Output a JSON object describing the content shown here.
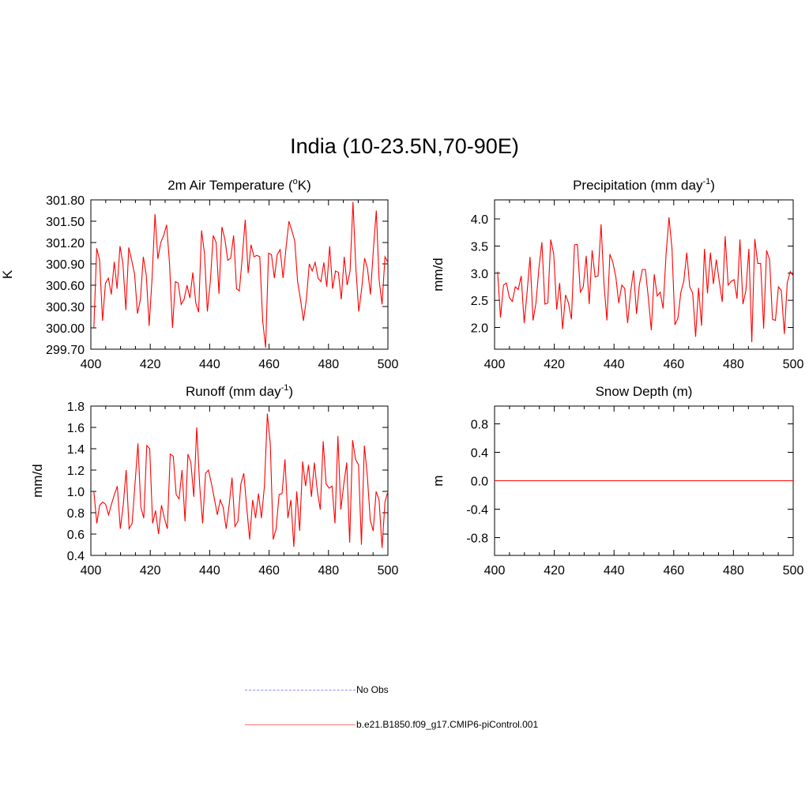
{
  "title": "India (10-23.5N,70-90E)",
  "colors": {
    "model_line": "#ff0000",
    "obs_line": "#8b8bff",
    "model_legend": "#ff6f6f"
  },
  "legend": [
    {
      "label": "No Obs",
      "style": "dashed",
      "color": "#8b8bff"
    },
    {
      "label": "b.e21.B1850.f09_g17.CMIP6-piControl.001",
      "style": "solid",
      "color": "#ff6f6f"
    }
  ],
  "chart_data": [
    {
      "type": "line",
      "title": "2m Air Temperature (",
      "title_sup": "o",
      "title_end": "K)",
      "ylabel": "K",
      "xlim": [
        400,
        500
      ],
      "ylim": [
        299.7,
        301.8
      ],
      "xticks": [
        400,
        420,
        440,
        460,
        480,
        500
      ],
      "yticks": [
        299.7,
        300.0,
        300.3,
        300.6,
        300.9,
        301.2,
        301.5,
        301.8
      ],
      "ytick_labels": [
        "299.70",
        "300.00",
        "300.30",
        "300.60",
        "300.90",
        "301.20",
        "301.50",
        "301.80"
      ],
      "series": [
        {
          "values": [
            300.0,
            301.12,
            300.95,
            300.1,
            300.63,
            300.7,
            300.47,
            300.93,
            300.55,
            301.15,
            300.9,
            300.25,
            301.13,
            300.95,
            300.75,
            300.2,
            300.4,
            301.0,
            300.75,
            300.03,
            300.7,
            301.6,
            300.97,
            301.2,
            301.3,
            301.45,
            300.9,
            300.0,
            300.65,
            300.63,
            300.33,
            300.4,
            300.6,
            300.42,
            300.78,
            300.35,
            300.22,
            301.37,
            301.05,
            300.23,
            300.65,
            301.3,
            301.2,
            300.48,
            301.42,
            301.25,
            300.95,
            300.98,
            301.3,
            300.55,
            300.52,
            301.0,
            301.52,
            300.77,
            301.17,
            301.0,
            301.02,
            301.0,
            300.1,
            299.72,
            301.05,
            301.03,
            300.7,
            301.03,
            301.1,
            300.7,
            301.12,
            301.5,
            301.37,
            301.22,
            300.65,
            300.4,
            300.1,
            300.4,
            300.9,
            300.8,
            300.92,
            300.7,
            300.65,
            300.92,
            300.58,
            301.15,
            300.55,
            300.8,
            300.78,
            300.4,
            301.0,
            300.6,
            300.8,
            301.77,
            300.83,
            300.23,
            300.55,
            300.98,
            300.83,
            300.47,
            301.1,
            301.65,
            300.67,
            300.33,
            301.0,
            300.92
          ]
        }
      ]
    },
    {
      "type": "line",
      "title": "Precipitation (mm day",
      "title_sup": "-1",
      "title_end": ")",
      "ylabel": "mm/d",
      "xlim": [
        400,
        500
      ],
      "ylim": [
        1.6,
        4.35
      ],
      "xticks": [
        400,
        420,
        440,
        460,
        480,
        500
      ],
      "yticks": [
        2.0,
        2.5,
        3.0,
        3.5,
        4.0
      ],
      "ytick_labels": [
        "2.0",
        "2.5",
        "3.0",
        "3.5",
        "4.0"
      ],
      "series": [
        {
          "values": [
            3.03,
            2.18,
            2.78,
            2.82,
            2.55,
            2.48,
            2.75,
            2.7,
            2.95,
            2.08,
            2.65,
            3.3,
            2.13,
            2.45,
            3.1,
            3.57,
            2.43,
            2.45,
            3.62,
            3.35,
            2.33,
            2.82,
            1.97,
            2.6,
            2.45,
            2.15,
            3.52,
            3.53,
            2.65,
            2.75,
            3.32,
            2.43,
            3.42,
            2.93,
            2.95,
            3.9,
            2.8,
            2.13,
            3.35,
            3.2,
            2.93,
            2.45,
            2.78,
            2.72,
            2.08,
            2.65,
            3.05,
            2.25,
            2.8,
            3.07,
            3.07,
            2.55,
            1.95,
            2.98,
            2.58,
            2.65,
            2.35,
            3.35,
            4.03,
            3.45,
            2.05,
            2.17,
            2.65,
            2.85,
            3.38,
            2.75,
            2.63,
            1.83,
            2.73,
            2.03,
            3.45,
            2.63,
            3.38,
            2.8,
            3.25,
            2.85,
            2.47,
            3.68,
            2.78,
            2.85,
            2.88,
            2.53,
            3.62,
            2.43,
            2.68,
            3.45,
            1.73,
            3.63,
            3.18,
            3.18,
            1.98,
            3.42,
            3.25,
            2.15,
            2.13,
            2.75,
            2.68,
            1.88,
            2.83,
            3.03,
            2.95
          ]
        }
      ]
    },
    {
      "type": "line",
      "title": "Runoff (mm day",
      "title_sup": "-1",
      "title_end": ")",
      "ylabel": "mm/d",
      "xlim": [
        400,
        500
      ],
      "ylim": [
        0.4,
        1.8
      ],
      "xticks": [
        400,
        420,
        440,
        460,
        480,
        500
      ],
      "yticks": [
        0.4,
        0.6,
        0.8,
        1.0,
        1.2,
        1.4,
        1.6,
        1.8
      ],
      "ytick_labels": [
        "0.4",
        "0.6",
        "0.8",
        "1.0",
        "1.2",
        "1.4",
        "1.6",
        "1.8"
      ],
      "series": [
        {
          "values": [
            1.0,
            0.7,
            0.87,
            0.9,
            0.88,
            0.78,
            0.88,
            0.97,
            1.05,
            0.65,
            0.87,
            1.2,
            0.65,
            0.7,
            1.07,
            1.45,
            0.85,
            0.75,
            1.43,
            1.4,
            0.7,
            0.82,
            0.6,
            0.87,
            0.75,
            0.65,
            1.35,
            1.33,
            0.97,
            0.93,
            1.2,
            0.72,
            1.35,
            1.27,
            0.95,
            1.6,
            1.05,
            0.7,
            1.17,
            1.2,
            1.07,
            0.93,
            0.78,
            0.92,
            0.85,
            0.65,
            0.87,
            1.13,
            0.67,
            0.72,
            1.07,
            1.17,
            0.85,
            0.55,
            0.92,
            0.75,
            0.98,
            0.75,
            1.05,
            1.73,
            1.45,
            0.55,
            0.65,
            0.97,
            0.98,
            1.3,
            0.75,
            0.92,
            0.48,
            1.0,
            0.63,
            1.28,
            1.05,
            1.25,
            0.95,
            1.27,
            1.0,
            0.83,
            1.47,
            1.07,
            1.03,
            1.05,
            0.7,
            1.52,
            0.83,
            1.07,
            1.27,
            0.52,
            1.48,
            1.3,
            1.25,
            0.5,
            1.43,
            1.15,
            0.73,
            0.63,
            1.0,
            0.92,
            0.47,
            0.9,
            1.0
          ]
        }
      ]
    },
    {
      "type": "line",
      "title": "Snow Depth (m)",
      "title_sup": "",
      "title_end": "",
      "ylabel": "m",
      "xlim": [
        400,
        500
      ],
      "ylim": [
        -1.05,
        1.05
      ],
      "xticks": [
        400,
        420,
        440,
        460,
        480,
        500
      ],
      "yticks": [
        -0.8,
        -0.4,
        0.0,
        0.4,
        0.8
      ],
      "ytick_labels": [
        "-0.8",
        "-0.4",
        "0.0",
        "0.4",
        "0.8"
      ],
      "series": [
        {
          "values": [
            0,
            0
          ],
          "x": [
            400,
            500
          ]
        }
      ]
    }
  ]
}
